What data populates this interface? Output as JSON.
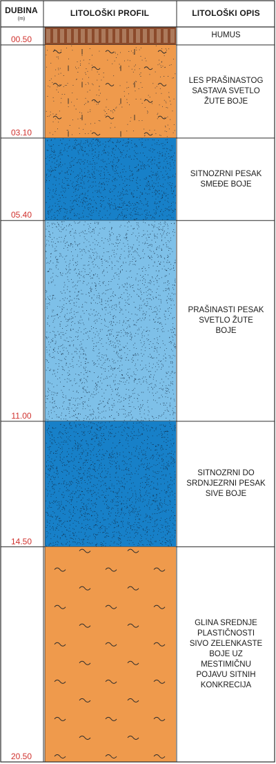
{
  "headers": {
    "depth": "DUBINA",
    "depth_unit": "(m)",
    "profile": "LITOLOŠKI PROFIL",
    "description": "LITOLOŠKI OPIS"
  },
  "layers": [
    {
      "from": 0.0,
      "to": 0.5,
      "depth_label": "00.50",
      "description": "HUMUS",
      "pattern": "humus",
      "color": "#8b4a2b"
    },
    {
      "from": 0.5,
      "to": 3.1,
      "depth_label": "03.10",
      "description": "LES PRAŠINASTOG\nSASTAVA SVETLO\nŽUTE BOJE",
      "pattern": "loess",
      "color": "#ef9a4c"
    },
    {
      "from": 3.1,
      "to": 5.4,
      "depth_label": "05.40",
      "description": "SITNOZRNI PESAK\nSMEĐE BOJE",
      "pattern": "sand-dense",
      "color": "#1780c8"
    },
    {
      "from": 5.4,
      "to": 11.0,
      "depth_label": "11.00",
      "description": "PRAŠINASTI PESAK\nSVETLO ŽUTE\nBOJE",
      "pattern": "sand-light",
      "color": "#7ec0e8"
    },
    {
      "from": 11.0,
      "to": 14.5,
      "depth_label": "14.50",
      "description": "SITNOZRNI DO\nSRDNJEZRNI PESAK\nSIVE BOJE",
      "pattern": "sand-dense",
      "color": "#1780c8"
    },
    {
      "from": 14.5,
      "to": 20.5,
      "depth_label": "20.50",
      "description": "GLINA SREDNJE\nPLASTIČNOSTI\nSIVO ZELENKASTE\nBOJE UZ\nMESTIMIČNU\nPOJAVU SITNIH\nKONKRECIJA",
      "pattern": "clay",
      "color": "#ef9a4c"
    }
  ],
  "colors": {
    "depth_text": "#d0312d",
    "border": "#2a2a2a",
    "dots": "#10233a"
  }
}
